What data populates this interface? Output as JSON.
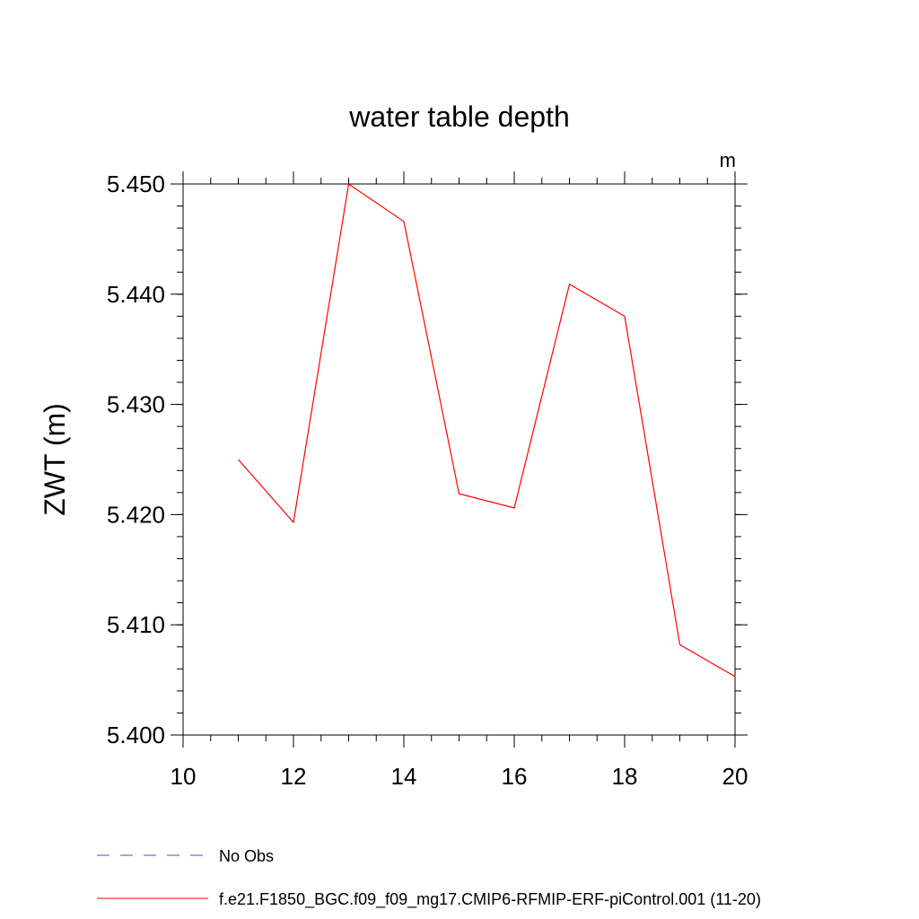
{
  "chart_data": {
    "type": "line",
    "title": "water table depth",
    "units": "m",
    "ylabel": "ZWT  (m)",
    "xlabel": "",
    "xlim": [
      10,
      20
    ],
    "ylim": [
      5.4,
      5.45
    ],
    "x_ticks": [
      "10",
      "12",
      "14",
      "16",
      "18",
      "20"
    ],
    "x_tick_values": [
      10,
      12,
      14,
      16,
      18,
      20
    ],
    "y_ticks": [
      "5.400",
      "5.410",
      "5.420",
      "5.430",
      "5.440",
      "5.450"
    ],
    "y_tick_values": [
      5.4,
      5.41,
      5.42,
      5.43,
      5.44,
      5.45
    ],
    "grid": false,
    "legend_position": "bottom",
    "series": [
      {
        "name": "f.e21.F1850_BGC.f09_f09_mg17.CMIP6-RFMIP-ERF-piControl.001 (11-20)",
        "color": "#ff0000",
        "style": "solid",
        "x": [
          11,
          12,
          13,
          14,
          15,
          16,
          17,
          18,
          19,
          20
        ],
        "y": [
          5.425,
          5.4193,
          5.45,
          5.4466,
          5.4219,
          5.4206,
          5.4409,
          5.438,
          5.4082,
          5.4053
        ]
      }
    ],
    "legend": [
      {
        "label": "No Obs",
        "color": "#5a4fa8",
        "style": "dashed"
      },
      {
        "label": "f.e21.F1850_BGC.f09_f09_mg17.CMIP6-RFMIP-ERF-piControl.001 (11-20)",
        "color": "#ff0000",
        "style": "solid"
      }
    ]
  }
}
